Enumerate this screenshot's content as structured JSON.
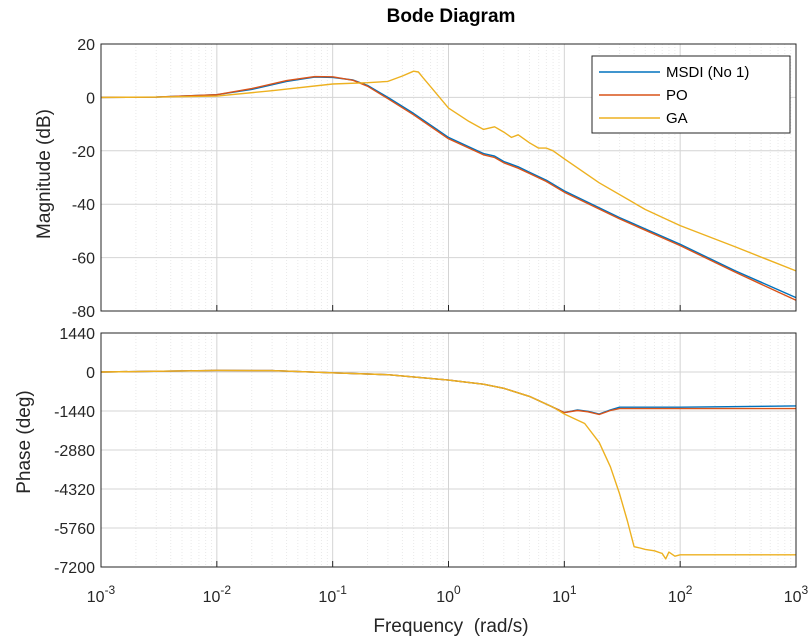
{
  "chart_data": {
    "type": "line",
    "title": "Bode Diagram",
    "xlabel": "Frequency  (rad/s)",
    "x_scale": "log",
    "xlim": [
      0.001,
      1000
    ],
    "x_ticks": [
      0.001,
      0.01,
      0.1,
      1,
      10,
      100,
      1000
    ],
    "x_tick_labels": [
      {
        "base": "10",
        "exp": "-3"
      },
      {
        "base": "10",
        "exp": "-2"
      },
      {
        "base": "10",
        "exp": "-1"
      },
      {
        "base": "10",
        "exp": "0"
      },
      {
        "base": "10",
        "exp": "1"
      },
      {
        "base": "10",
        "exp": "2"
      },
      {
        "base": "10",
        "exp": "3"
      }
    ],
    "grid": true,
    "legend_position": "top-right",
    "colors": {
      "MSDI (No 1)": "#0072BD",
      "PO": "#D95319",
      "GA": "#EDB120"
    },
    "panels": [
      {
        "id": "magnitude",
        "ylabel": "Magnitude (dB)",
        "ylim": [
          -80,
          20
        ],
        "y_ticks": [
          20,
          0,
          -20,
          -40,
          -60,
          -80
        ],
        "y_tick_labels": [
          "20",
          "0",
          "-20",
          "-40",
          "-60",
          "-80"
        ],
        "series": [
          {
            "name": "MSDI (No 1)",
            "x": [
              0.001,
              0.003,
              0.01,
              0.02,
              0.04,
              0.07,
              0.1,
              0.15,
              0.2,
              0.3,
              0.5,
              1,
              2,
              2.5,
              3,
              4,
              5,
              7,
              10,
              30,
              100,
              300,
              1000
            ],
            "y": [
              0,
              0.1,
              1,
              3,
              6,
              7.6,
              7.5,
              6.5,
              4.5,
              0,
              -6,
              -15,
              -21,
              -22,
              -24,
              -26,
              -28,
              -31,
              -35,
              -45,
              -55,
              -65,
              -75
            ]
          },
          {
            "name": "PO",
            "x": [
              0.001,
              0.003,
              0.01,
              0.02,
              0.04,
              0.07,
              0.1,
              0.15,
              0.2,
              0.3,
              0.5,
              1,
              2,
              2.5,
              3,
              4,
              5,
              7,
              10,
              30,
              100,
              300,
              1000
            ],
            "y": [
              0,
              0.1,
              1,
              3.3,
              6.3,
              7.8,
              7.7,
              6.4,
              4.2,
              -0.5,
              -6.5,
              -15.5,
              -21.5,
              -22.5,
              -24.5,
              -26.5,
              -28.5,
              -31.5,
              -35.5,
              -45.5,
              -55.5,
              -65.5,
              -76
            ]
          },
          {
            "name": "GA",
            "x": [
              0.001,
              0.003,
              0.01,
              0.03,
              0.1,
              0.2,
              0.3,
              0.4,
              0.5,
              0.55,
              0.6,
              0.7,
              0.8,
              1,
              1.5,
              2,
              2.5,
              3,
              3.5,
              4,
              5,
              6,
              7,
              8,
              10,
              20,
              50,
              100,
              300,
              1000
            ],
            "y": [
              0,
              0.1,
              0.5,
              2.5,
              5,
              5.5,
              6,
              8,
              9.8,
              9.5,
              7.5,
              4,
              1,
              -4,
              -9,
              -12,
              -11,
              -13,
              -15,
              -14,
              -17,
              -19,
              -19,
              -20,
              -23,
              -32,
              -42,
              -48,
              -56,
              -65
            ]
          }
        ]
      },
      {
        "id": "phase",
        "ylabel": "Phase (deg)",
        "ylim": [
          -7200,
          1440
        ],
        "y_ticks": [
          1440,
          0,
          -1440,
          -2880,
          -4320,
          -5760,
          -7200
        ],
        "y_tick_labels": [
          "1440",
          "0",
          "-1440",
          "-2880",
          "-4320",
          "-5760",
          "-7200"
        ],
        "series": [
          {
            "name": "MSDI (No 1)",
            "x": [
              0.001,
              0.01,
              0.03,
              0.1,
              0.3,
              1,
              2,
              3,
              5,
              8,
              10,
              13,
              16,
              20,
              25,
              30,
              100,
              1000
            ],
            "y": [
              0,
              60,
              50,
              -30,
              -100,
              -300,
              -450,
              -600,
              -900,
              -1300,
              -1500,
              -1400,
              -1450,
              -1550,
              -1400,
              -1300,
              -1300,
              -1250
            ]
          },
          {
            "name": "PO",
            "x": [
              0.001,
              0.01,
              0.03,
              0.1,
              0.3,
              1,
              2,
              3,
              5,
              8,
              10,
              13,
              16,
              20,
              25,
              30,
              100,
              1000
            ],
            "y": [
              0,
              60,
              50,
              -30,
              -100,
              -300,
              -450,
              -600,
              -900,
              -1300,
              -1500,
              -1420,
              -1470,
              -1570,
              -1420,
              -1350,
              -1350,
              -1350
            ]
          },
          {
            "name": "GA",
            "x": [
              0.001,
              0.01,
              0.03,
              0.1,
              0.3,
              1,
              2,
              3,
              5,
              8,
              10,
              15,
              20,
              25,
              30,
              35,
              40,
              45,
              50,
              60,
              70,
              75,
              80,
              90,
              100,
              1000
            ],
            "y": [
              0,
              60,
              50,
              -30,
              -100,
              -300,
              -450,
              -600,
              -900,
              -1300,
              -1550,
              -1900,
              -2600,
              -3500,
              -4500,
              -5500,
              -6450,
              -6500,
              -6550,
              -6600,
              -6700,
              -6900,
              -6650,
              -6800,
              -6750,
              -6750
            ]
          }
        ]
      }
    ]
  }
}
